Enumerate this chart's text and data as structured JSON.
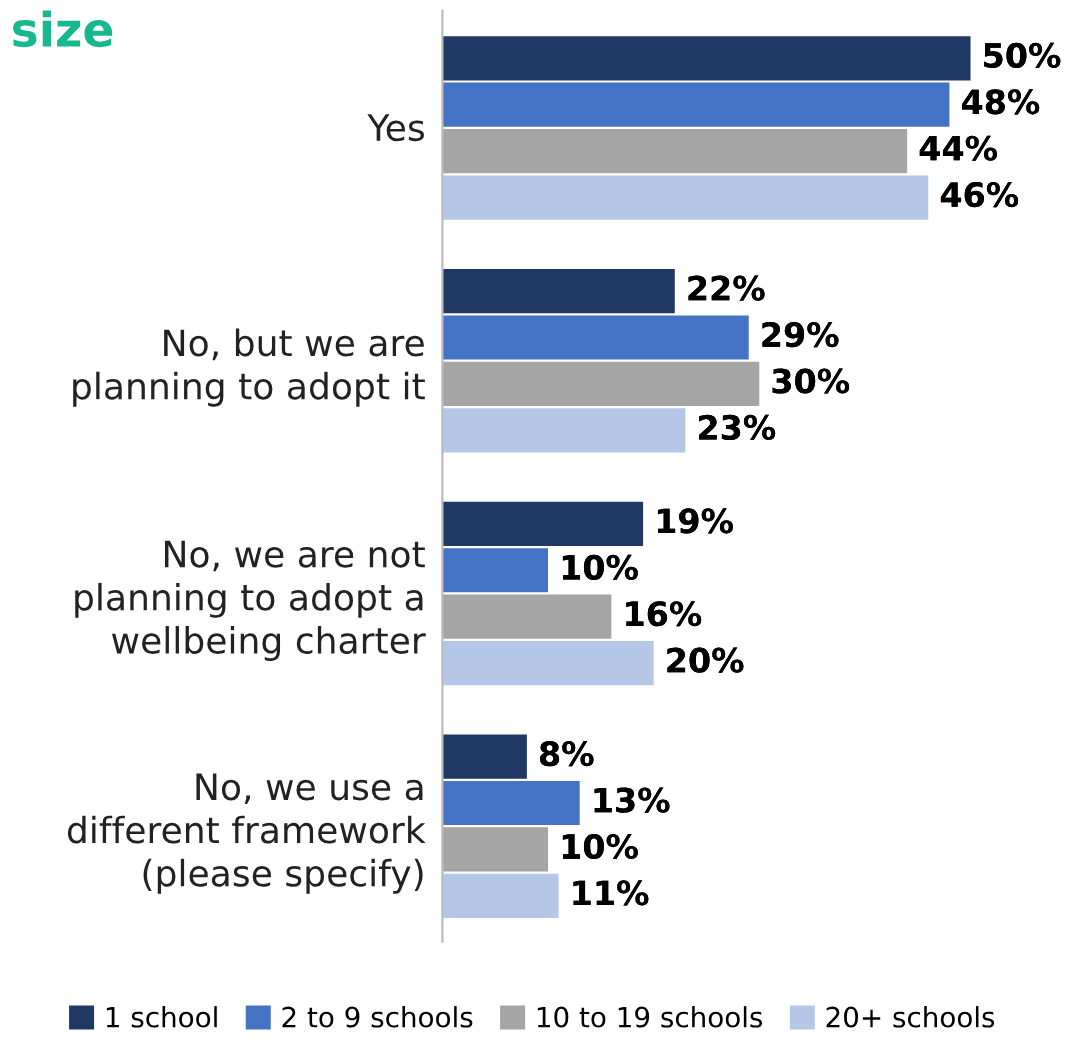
{
  "chart_data": {
    "type": "bar",
    "orientation": "horizontal",
    "title": "size",
    "categories": [
      "Yes",
      "No, but we are\nplanning to adopt it",
      "No, we are not\nplanning to adopt a\nwellbeing charter",
      "No, we use a\ndifferent framework\n(please specify)"
    ],
    "series": [
      {
        "name": "1 school",
        "color": "#1f3864",
        "values": [
          50,
          22,
          19,
          8
        ],
        "value_labels": [
          "50%",
          "22%",
          "19%",
          "8%"
        ]
      },
      {
        "name": "2 to 9 schools",
        "color": "#4472c4",
        "values": [
          48,
          29,
          10,
          13
        ],
        "value_labels": [
          "48%",
          "29%",
          "10%",
          "13%"
        ]
      },
      {
        "name": "10 to 19 schools",
        "color": "#a5a5a5",
        "values": [
          44,
          30,
          16,
          10
        ],
        "value_labels": [
          "44%",
          "30%",
          "16%",
          "10%"
        ]
      },
      {
        "name": "20+ schools",
        "color": "#b4c7e7",
        "values": [
          46,
          23,
          20,
          11
        ],
        "value_labels": [
          "46%",
          "23%",
          "20%",
          "11%"
        ]
      }
    ],
    "legend": "bottom",
    "grid": false
  }
}
